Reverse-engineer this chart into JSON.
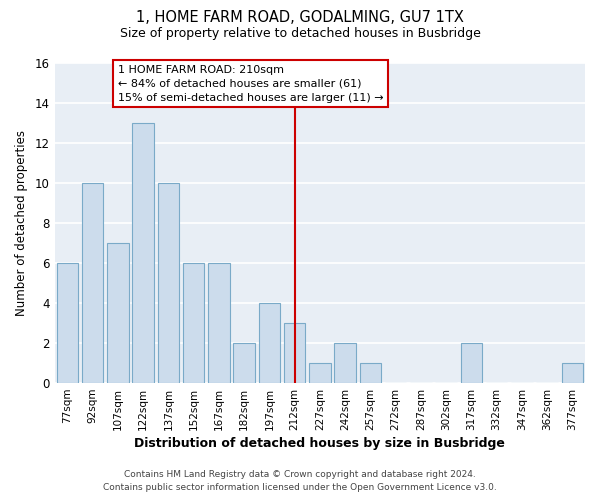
{
  "title": "1, HOME FARM ROAD, GODALMING, GU7 1TX",
  "subtitle": "Size of property relative to detached houses in Busbridge",
  "xlabel": "Distribution of detached houses by size in Busbridge",
  "ylabel": "Number of detached properties",
  "bar_labels": [
    "77sqm",
    "92sqm",
    "107sqm",
    "122sqm",
    "137sqm",
    "152sqm",
    "167sqm",
    "182sqm",
    "197sqm",
    "212sqm",
    "227sqm",
    "242sqm",
    "257sqm",
    "272sqm",
    "287sqm",
    "302sqm",
    "317sqm",
    "332sqm",
    "347sqm",
    "362sqm",
    "377sqm"
  ],
  "bar_values": [
    6,
    10,
    7,
    13,
    10,
    6,
    6,
    2,
    4,
    3,
    1,
    2,
    1,
    0,
    0,
    0,
    2,
    0,
    0,
    0,
    1
  ],
  "bar_color": "#ccdcec",
  "bar_edge_color": "#7aaac8",
  "reference_line_x_label": "212sqm",
  "reference_line_color": "#cc0000",
  "annotation_title": "1 HOME FARM ROAD: 210sqm",
  "annotation_line1": "← 84% of detached houses are smaller (61)",
  "annotation_line2": "15% of semi-detached houses are larger (11) →",
  "annotation_box_edge_color": "#cc0000",
  "annotation_box_bg": "#ffffff",
  "ylim": [
    0,
    16
  ],
  "yticks": [
    0,
    2,
    4,
    6,
    8,
    10,
    12,
    14,
    16
  ],
  "plot_bg_color": "#e8eef5",
  "figure_bg_color": "#ffffff",
  "grid_color": "#ffffff",
  "footer_line1": "Contains HM Land Registry data © Crown copyright and database right 2024.",
  "footer_line2": "Contains public sector information licensed under the Open Government Licence v3.0."
}
